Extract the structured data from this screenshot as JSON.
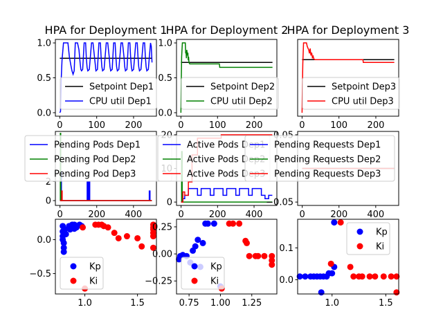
{
  "figure": {
    "background": "#ffffff"
  },
  "chart_data": [
    {
      "type": "line",
      "title": "HPA for Deployment 1",
      "xlim": [
        -12,
        262
      ],
      "ylim": [
        -0.05,
        1.05
      ],
      "xticks": [
        0,
        100,
        200
      ],
      "xtick_labels": [
        "0",
        "100",
        "200"
      ],
      "yticks": [
        0.0,
        0.5,
        1.0
      ],
      "ytick_labels": [
        "0.0",
        "0.5",
        "1.0"
      ],
      "grid": false,
      "legend_position": "lower-right",
      "series": [
        {
          "name": "Setpoint Dep1",
          "color": "#000000",
          "x": [
            0,
            250
          ],
          "y": [
            0.78,
            0.78
          ]
        },
        {
          "name": "CPU util Dep1",
          "color": "#0000ff",
          "x": [
            0,
            2,
            4,
            6,
            10,
            14,
            22,
            26,
            30,
            33,
            36,
            39,
            42,
            48,
            52,
            55,
            57,
            59,
            62,
            66,
            70,
            72,
            74,
            76,
            80,
            86,
            90,
            93,
            96,
            98,
            102,
            106,
            110,
            112,
            114,
            116,
            120,
            126,
            130,
            134,
            136,
            138,
            142,
            146,
            150,
            152,
            154,
            156,
            160,
            166,
            170,
            174,
            176,
            178,
            182,
            186,
            190,
            192,
            194,
            196,
            200,
            206,
            210,
            212,
            214,
            216,
            220,
            226,
            230,
            232,
            234,
            236,
            240,
            246,
            248,
            250
          ],
          "y": [
            0.0,
            0.02,
            0.5,
            0.75,
            1.0,
            1.0,
            1.0,
            0.8,
            0.68,
            0.6,
            0.55,
            0.6,
            1.0,
            1.0,
            0.9,
            0.72,
            0.62,
            0.6,
            0.62,
            1.0,
            1.0,
            0.78,
            0.65,
            0.6,
            0.62,
            1.0,
            1.0,
            0.85,
            0.7,
            0.6,
            0.62,
            1.0,
            1.0,
            0.8,
            0.66,
            0.6,
            0.62,
            1.0,
            1.0,
            0.8,
            0.66,
            0.6,
            0.62,
            1.0,
            1.0,
            0.8,
            0.66,
            0.6,
            0.62,
            1.0,
            1.0,
            0.8,
            0.66,
            0.6,
            0.62,
            1.0,
            1.0,
            0.8,
            0.66,
            0.6,
            0.62,
            1.0,
            1.0,
            0.8,
            0.66,
            0.6,
            0.62,
            1.0,
            1.0,
            0.8,
            0.66,
            0.6,
            0.62,
            1.0,
            0.95,
            0.72
          ]
        }
      ]
    },
    {
      "type": "line",
      "title": "HPA for Deployment 2",
      "xlim": [
        -12,
        262
      ],
      "ylim": [
        -0.05,
        1.05
      ],
      "xticks": [
        0,
        100,
        200
      ],
      "xtick_labels": [
        "0",
        "100",
        "200"
      ],
      "yticks": [
        0.0,
        0.5,
        1.0
      ],
      "ytick_labels": [
        "0.0",
        "0.5",
        "1.0"
      ],
      "grid": false,
      "legend_position": "lower-right",
      "series": [
        {
          "name": "Setpoint Dep2",
          "color": "#000000",
          "x": [
            0,
            250
          ],
          "y": [
            0.72,
            0.72
          ]
        },
        {
          "name": "CPU util Dep2",
          "color": "#008000",
          "x": [
            0,
            1,
            2,
            4,
            8,
            12,
            13,
            14,
            15,
            16,
            18,
            19,
            20,
            21,
            22,
            24,
            30,
            40,
            60,
            80,
            100,
            105,
            106,
            140,
            180,
            220,
            250
          ],
          "y": [
            0.0,
            0.45,
            0.8,
            1.0,
            1.0,
            1.0,
            0.85,
            0.88,
            0.78,
            0.9,
            0.82,
            0.86,
            0.75,
            0.8,
            0.72,
            0.7,
            0.7,
            0.7,
            0.7,
            0.7,
            0.7,
            0.7,
            0.65,
            0.65,
            0.65,
            0.65,
            0.65
          ]
        }
      ]
    },
    {
      "type": "line",
      "title": "HPA for Deployment 3",
      "xlim": [
        -12,
        262
      ],
      "ylim": [
        -0.05,
        1.05
      ],
      "xticks": [
        0,
        100,
        200
      ],
      "xtick_labels": [
        "0",
        "100",
        "200"
      ],
      "yticks": [],
      "ytick_labels": [],
      "grid": false,
      "legend_position": "lower-right",
      "series": [
        {
          "name": "Setpoint Dep3",
          "color": "#000000",
          "x": [
            0,
            250
          ],
          "y": [
            0.76,
            0.76
          ]
        },
        {
          "name": "CPU util Dep3",
          "color": "#ff0000",
          "x": [
            0,
            1,
            2,
            4,
            8,
            12,
            14,
            18,
            20,
            22,
            24,
            26,
            28,
            30,
            32,
            35,
            50,
            100,
            150,
            165,
            166,
            200,
            250
          ],
          "y": [
            0.0,
            0.4,
            0.7,
            1.0,
            1.0,
            1.0,
            0.95,
            0.9,
            0.85,
            0.92,
            0.82,
            0.86,
            0.79,
            0.81,
            0.77,
            0.76,
            0.76,
            0.76,
            0.76,
            0.76,
            0.72,
            0.72,
            0.72
          ]
        }
      ]
    },
    {
      "type": "line",
      "title": "",
      "xlim": [
        -25,
        525
      ],
      "ylim": [
        -0.5,
        7.2
      ],
      "xticks": [
        0,
        200,
        400
      ],
      "xtick_labels": [
        "0",
        "200",
        "400"
      ],
      "yticks": [
        0,
        2
      ],
      "ytick_labels": [
        "0",
        "2"
      ],
      "grid": false,
      "legend_position": "upper-center",
      "series": [
        {
          "name": "Pending Pods Dep1",
          "color": "#0000ff",
          "x": [
            0,
            6,
            6.01,
            8,
            8.01,
            148,
            148.01,
            152,
            152.01,
            156,
            156.01,
            158,
            158.01,
            160,
            160.01,
            162,
            162.01,
            486,
            486.01,
            490,
            490.01,
            500
          ],
          "y": [
            0,
            0,
            3,
            3,
            0,
            0,
            2,
            2,
            0,
            0,
            2,
            2,
            0,
            0,
            2,
            2,
            0,
            0,
            1,
            1,
            0,
            0
          ]
        },
        {
          "name": "Pending Pod Dep2",
          "color": "#008000",
          "x": [
            0,
            2,
            2.01,
            4,
            4.01,
            500
          ],
          "y": [
            0,
            0,
            7,
            7,
            0,
            0
          ]
        },
        {
          "name": "Pending Pod Dep3",
          "color": "#ff0000",
          "x": [
            0,
            10,
            10.01,
            12,
            12.01,
            500
          ],
          "y": [
            0,
            0,
            1,
            1,
            0,
            0
          ]
        }
      ]
    },
    {
      "type": "line",
      "title": "",
      "xlim": [
        -25,
        525
      ],
      "ylim": [
        -1,
        21
      ],
      "xticks": [
        0,
        200,
        400
      ],
      "xtick_labels": [
        "0",
        "200",
        "400"
      ],
      "yticks": [
        0,
        10,
        20
      ],
      "ytick_labels": [
        "0",
        "10",
        "20"
      ],
      "grid": false,
      "legend_position": "upper-center",
      "series": [
        {
          "name": "Active Pods Dep1",
          "color": "#0000ff",
          "x": [
            0,
            10,
            10.01,
            20,
            20.01,
            40,
            40.01,
            90,
            90.01,
            110,
            110.01,
            160,
            160.01,
            180,
            180.01,
            230,
            230.01,
            250,
            250.01,
            300,
            300.01,
            320,
            320.01,
            370,
            370.01,
            390,
            390.01,
            440,
            440.01,
            460,
            460.01,
            480,
            480.01,
            500
          ],
          "y": [
            0,
            0,
            1,
            1,
            2,
            2,
            4,
            4,
            2,
            2,
            4,
            4,
            2,
            2,
            4,
            4,
            2,
            2,
            4,
            4,
            2,
            2,
            4,
            4,
            2,
            2,
            4,
            4,
            2,
            2,
            1,
            1,
            2,
            2
          ]
        },
        {
          "name": "Active Pods Dep2",
          "color": "#008000",
          "x": [
            0,
            3,
            3.01,
            6,
            6.01,
            500
          ],
          "y": [
            0,
            0,
            15,
            15,
            0,
            0
          ]
        },
        {
          "name": "Active Pods Dep3",
          "color": "#ff0000",
          "x": [
            0,
            10,
            10.01,
            20,
            20.01,
            40,
            40.01,
            60,
            60.01,
            90,
            90.01,
            220,
            220.01,
            500
          ],
          "y": [
            0,
            0,
            3,
            3,
            2,
            2,
            6,
            6,
            14,
            14,
            19,
            19,
            20,
            20
          ]
        }
      ]
    },
    {
      "type": "line",
      "title": "",
      "xlim": [
        -25,
        525
      ],
      "ylim": [
        -0.055,
        0.055
      ],
      "xticks": [
        0,
        200,
        400
      ],
      "xtick_labels": [
        "0",
        "200",
        "400"
      ],
      "yticks": [
        0.05,
        -0.05
      ],
      "ytick_labels": [
        "0.05",
        "−0.05"
      ],
      "grid": false,
      "legend_position": "upper-center",
      "series": [
        {
          "name": "Pending Requests Dep1",
          "color": "#0000ff",
          "x": [
            0,
            500
          ],
          "y": [
            0,
            0
          ]
        },
        {
          "name": "Pending Requests Dep2",
          "color": "#008000",
          "x": [
            0,
            500
          ],
          "y": [
            0,
            0
          ]
        },
        {
          "name": "Pending Requests Dep3",
          "color": "#ff0000",
          "x": [
            0,
            500
          ],
          "y": [
            0,
            0
          ]
        }
      ]
    },
    {
      "type": "scatter",
      "title": "",
      "xlim": [
        0.72,
        1.68
      ],
      "ylim": [
        -0.8,
        0.3
      ],
      "xticks": [
        1.0,
        1.5
      ],
      "xtick_labels": [
        "1.0",
        "1.5"
      ],
      "yticks": [
        0.0,
        -0.5
      ],
      "ytick_labels": [
        "0.0",
        "−0.5"
      ],
      "grid": false,
      "legend_position": "lower-left",
      "series": [
        {
          "name": "Kp",
          "color": "#0000ff",
          "x": [
            0.79,
            0.79,
            0.79,
            0.79,
            0.8,
            0.8,
            0.8,
            0.81,
            0.82,
            0.85,
            0.86,
            0.87,
            0.88,
            0.89,
            0.9,
            0.9,
            0.92,
            0.95,
            0.97
          ],
          "y": [
            0.2,
            0.12,
            0.05,
            0.0,
            -0.05,
            -0.12,
            -0.18,
            0.15,
            0.08,
            0.2,
            0.15,
            0.18,
            0.22,
            0.2,
            0.16,
            0.22,
            0.18,
            0.22,
            0.2
          ]
        },
        {
          "name": "Ki",
          "color": "#ff0000",
          "x": [
            0.98,
            1.0,
            1.1,
            1.13,
            1.16,
            1.18,
            1.22,
            1.28,
            1.32,
            1.4,
            1.5,
            1.54,
            1.65,
            1.65,
            1.65,
            1.65,
            1.65,
            1.65
          ],
          "y": [
            0.18,
            -0.72,
            0.22,
            0.22,
            0.22,
            0.2,
            0.18,
            0.1,
            0.02,
            0.05,
            0.02,
            -0.1,
            0.22,
            0.18,
            0.15,
            0.1,
            0.05,
            -0.12
          ]
        }
      ]
    },
    {
      "type": "scatter",
      "title": "",
      "xlim": [
        0.65,
        1.45
      ],
      "ylim": [
        -0.37,
        0.32
      ],
      "xticks": [
        0.75,
        1.0,
        1.25
      ],
      "xtick_labels": [
        "0.75",
        "1.00",
        "1.25"
      ],
      "yticks": [
        0.25,
        0.0,
        -0.25
      ],
      "ytick_labels": [
        "0.25",
        "0.00",
        "−0.25"
      ],
      "grid": false,
      "legend_position": "lower-left",
      "series": [
        {
          "name": "Kp",
          "color": "#0000ff",
          "x": [
            0.67,
            0.68,
            0.7,
            0.73,
            0.76,
            0.78,
            0.8,
            0.82,
            0.84,
            0.86,
            0.88,
            0.9,
            0.95,
            1.0
          ],
          "y": [
            -0.05,
            -0.02,
            -0.01,
            -0.02,
            -0.08,
            0.03,
            0.07,
            0.13,
            -0.12,
            0.1,
            0.28,
            0.28,
            0.28,
            -0.3
          ]
        },
        {
          "name": "Ki",
          "color": "#ff0000",
          "x": [
            1.01,
            1.07,
            1.1,
            1.15,
            1.2,
            1.21,
            1.23,
            1.28,
            1.3,
            1.35,
            1.41,
            1.41,
            1.41
          ],
          "y": [
            -0.32,
            0.28,
            0.28,
            0.28,
            0.12,
            0.1,
            -0.02,
            -0.02,
            -0.02,
            -0.02,
            -0.02,
            -0.06,
            -0.1
          ]
        }
      ]
    },
    {
      "type": "scatter",
      "title": "",
      "xlim": [
        0.68,
        1.62
      ],
      "ylim": [
        -0.045,
        0.19
      ],
      "xticks": [
        1.0,
        1.5
      ],
      "xtick_labels": [
        "1.0",
        "1.5"
      ],
      "yticks": [
        0.1,
        0.0
      ],
      "ytick_labels": [
        "0.1",
        "0.0"
      ],
      "grid": false,
      "legend_position": "upper-right",
      "series": [
        {
          "name": "Kp",
          "color": "#0000ff",
          "x": [
            0.7,
            0.75,
            0.8,
            0.83,
            0.86,
            0.89,
            0.92,
            0.95,
            0.97,
            1.0,
            1.02,
            0.9,
            1.02
          ],
          "y": [
            0.01,
            0.01,
            0.01,
            0.01,
            0.01,
            0.01,
            0.01,
            0.01,
            0.02,
            0.02,
            0.04,
            -0.04,
            0.18
          ]
        },
        {
          "name": "Ki",
          "color": "#ff0000",
          "x": [
            0.99,
            1.08,
            1.17,
            1.2,
            1.25,
            1.28,
            1.35,
            1.4,
            1.48,
            1.55,
            1.6,
            1.6
          ],
          "y": [
            0.05,
            0.18,
            0.04,
            0.01,
            0.01,
            0.01,
            0.01,
            0.01,
            0.01,
            0.01,
            0.01,
            -0.04
          ]
        }
      ]
    }
  ]
}
